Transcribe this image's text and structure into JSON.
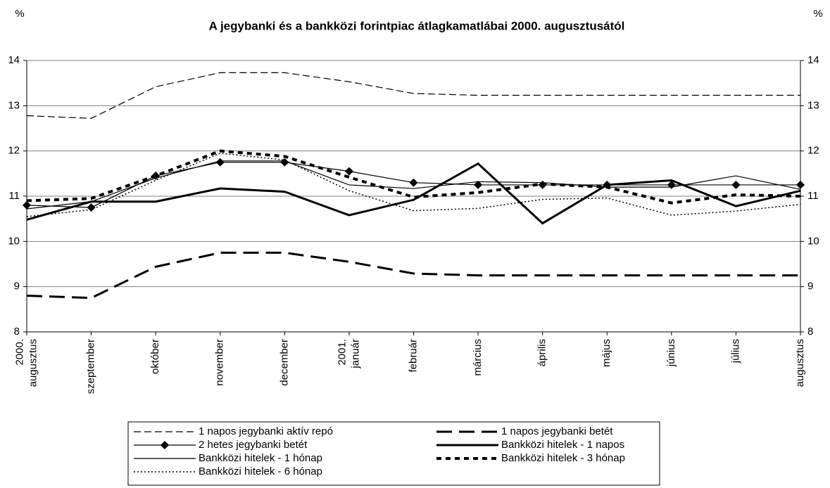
{
  "chart_data": {
    "type": "line",
    "title": "A jegybanki és a bankközi forintpiac átlagkamatlábai 2000. augusztusától",
    "y_label": "%",
    "y2_label": "%",
    "categories": [
      [
        "2000.",
        "augusztus"
      ],
      [
        "szeptember"
      ],
      [
        "október"
      ],
      [
        "november"
      ],
      [
        "december"
      ],
      [
        "2001.",
        "január"
      ],
      [
        "február"
      ],
      [
        "március"
      ],
      [
        "április"
      ],
      [
        "május"
      ],
      [
        "június"
      ],
      [
        "július"
      ],
      [
        "augusztus"
      ]
    ],
    "ylim": [
      8,
      14
    ],
    "yticks": [
      8,
      9,
      10,
      11,
      12,
      13,
      14
    ],
    "y2lim": [
      8,
      14
    ],
    "y2ticks": [
      8,
      9,
      10,
      11,
      12,
      13,
      14
    ],
    "grid": true,
    "series": [
      {
        "name": "1 napos jegybanki aktív repó",
        "color": "#000000",
        "values": [
          12.78,
          12.72,
          13.42,
          13.73,
          13.73,
          13.53,
          13.27,
          13.23,
          13.23,
          13.23,
          13.23,
          13.23,
          13.23
        ]
      },
      {
        "name": "1 napos jegybanki betét",
        "color": "#000000",
        "values": [
          8.8,
          8.75,
          9.44,
          9.75,
          9.75,
          9.55,
          9.29,
          9.25,
          9.25,
          9.25,
          9.25,
          9.25,
          9.25
        ]
      },
      {
        "name": "2 hetes jegybanki betét",
        "color": "#000000",
        "values": [
          10.8,
          10.75,
          11.45,
          11.75,
          11.75,
          11.55,
          11.3,
          11.25,
          11.25,
          11.25,
          11.25,
          11.25,
          11.25
        ]
      },
      {
        "name": "Bankközi hitelek - 1 napos",
        "color": "#000000",
        "values": [
          10.48,
          10.88,
          10.88,
          11.17,
          11.1,
          10.58,
          10.92,
          11.72,
          10.4,
          11.25,
          11.35,
          10.78,
          11.12
        ]
      },
      {
        "name": "Bankközi hitelek - 1 hónap",
        "color": "#000000",
        "values": [
          10.72,
          10.88,
          11.4,
          11.78,
          11.78,
          11.25,
          11.17,
          11.32,
          11.3,
          11.2,
          11.2,
          11.45,
          11.15
        ]
      },
      {
        "name": "Bankközi hitelek - 3 hónap",
        "color": "#000000",
        "values": [
          10.9,
          10.95,
          11.45,
          12.0,
          11.88,
          11.42,
          10.98,
          11.08,
          11.27,
          11.2,
          10.85,
          11.03,
          11.0
        ]
      },
      {
        "name": "Bankközi hitelek - 6 hónap",
        "color": "#000000",
        "values": [
          10.55,
          10.7,
          11.35,
          11.95,
          11.8,
          11.12,
          10.68,
          10.73,
          10.93,
          10.96,
          10.58,
          10.67,
          10.82
        ]
      }
    ]
  }
}
